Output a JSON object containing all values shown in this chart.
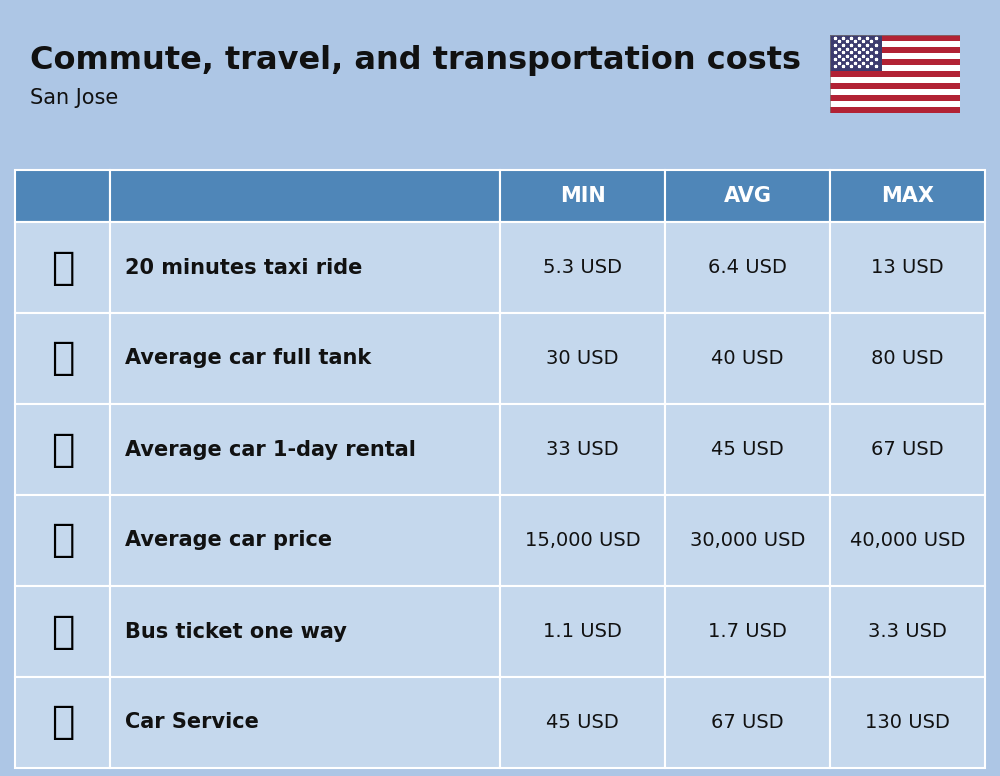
{
  "title": "Commute, travel, and transportation costs",
  "subtitle": "San Jose",
  "background_color": "#ADC6E5",
  "header_color": "#4F86B8",
  "header_text_color": "#FFFFFF",
  "row_color": "#C5D8ED",
  "separator_color": "#FFFFFF",
  "columns": [
    "",
    "",
    "MIN",
    "AVG",
    "MAX"
  ],
  "rows": [
    {
      "label": "20 minutes taxi ride",
      "min": "5.3 USD",
      "avg": "6.4 USD",
      "max": "13 USD"
    },
    {
      "label": "Average car full tank",
      "min": "30 USD",
      "avg": "40 USD",
      "max": "80 USD"
    },
    {
      "label": "Average car 1-day rental",
      "min": "33 USD",
      "avg": "45 USD",
      "max": "67 USD"
    },
    {
      "label": "Average car price",
      "min": "15,000 USD",
      "avg": "30,000 USD",
      "max": "40,000 USD"
    },
    {
      "label": "Bus ticket one way",
      "min": "1.1 USD",
      "avg": "1.7 USD",
      "max": "3.3 USD"
    },
    {
      "label": "Car Service",
      "min": "45 USD",
      "avg": "67 USD",
      "max": "130 USD"
    }
  ],
  "title_fontsize": 23,
  "subtitle_fontsize": 15,
  "header_fontsize": 15,
  "cell_fontsize": 14,
  "label_fontsize": 15,
  "icon_fontsize": 28
}
